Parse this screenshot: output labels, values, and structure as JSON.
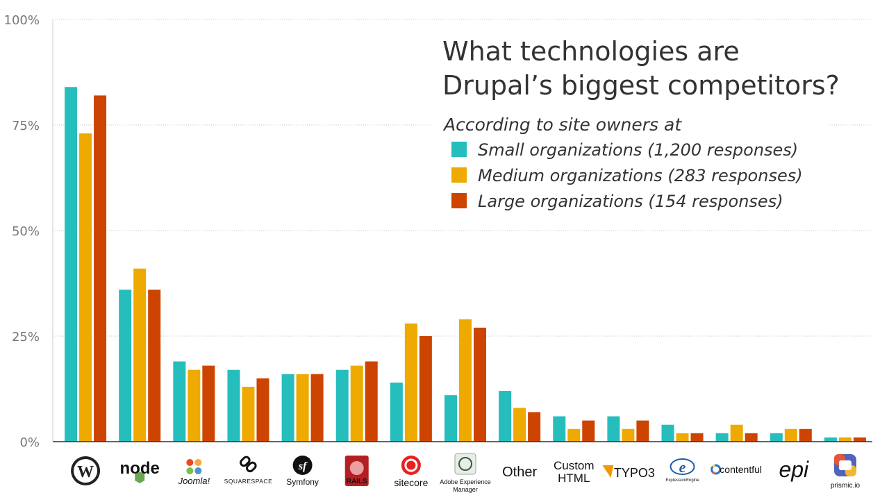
{
  "chart_data": {
    "type": "bar",
    "title": [
      "What technologies are",
      "Drupal’s biggest competitors?"
    ],
    "subtitle": "According to site owners at",
    "ylim": [
      0,
      100
    ],
    "yticks": [
      0,
      25,
      50,
      75,
      100
    ],
    "ytick_labels": [
      "0%",
      "25%",
      "50%",
      "75%",
      "100%"
    ],
    "categories": [
      "WordPress",
      "Node.js",
      "Joomla!",
      "Squarespace",
      "Symfony",
      "Rails",
      "Sitecore",
      "Adobe Experience Manager",
      "Other",
      "Custom HTML",
      "TYPO3",
      "ExpressionEngine",
      "contentful",
      "Episerver",
      "prismic.io"
    ],
    "category_labels": [
      "",
      "node",
      "Joomla!",
      "SQUARESPACE",
      "Symfony",
      "RAILS",
      "sitecore",
      "Adobe Experience Manager",
      "Other",
      "Custom HTML",
      "TYPO3",
      "ExpressionEngine",
      "contentful",
      "epi",
      "prismic.io"
    ],
    "series": [
      {
        "name": "Small organizations (1,200 responses)",
        "color": "#26BDBD",
        "values": [
          84,
          36,
          19,
          17,
          16,
          17,
          14,
          11,
          12,
          6,
          6,
          4,
          2,
          2,
          1
        ]
      },
      {
        "name": "Medium organizations (283 responses)",
        "color": "#EEAA00",
        "values": [
          73,
          41,
          17,
          13,
          16,
          18,
          28,
          29,
          8,
          3,
          3,
          2,
          4,
          3,
          1
        ]
      },
      {
        "name": "Large organizations (154 responses)",
        "color": "#CC4400",
        "values": [
          82,
          36,
          18,
          15,
          16,
          19,
          25,
          27,
          7,
          5,
          5,
          2,
          2,
          3,
          1
        ]
      }
    ]
  }
}
